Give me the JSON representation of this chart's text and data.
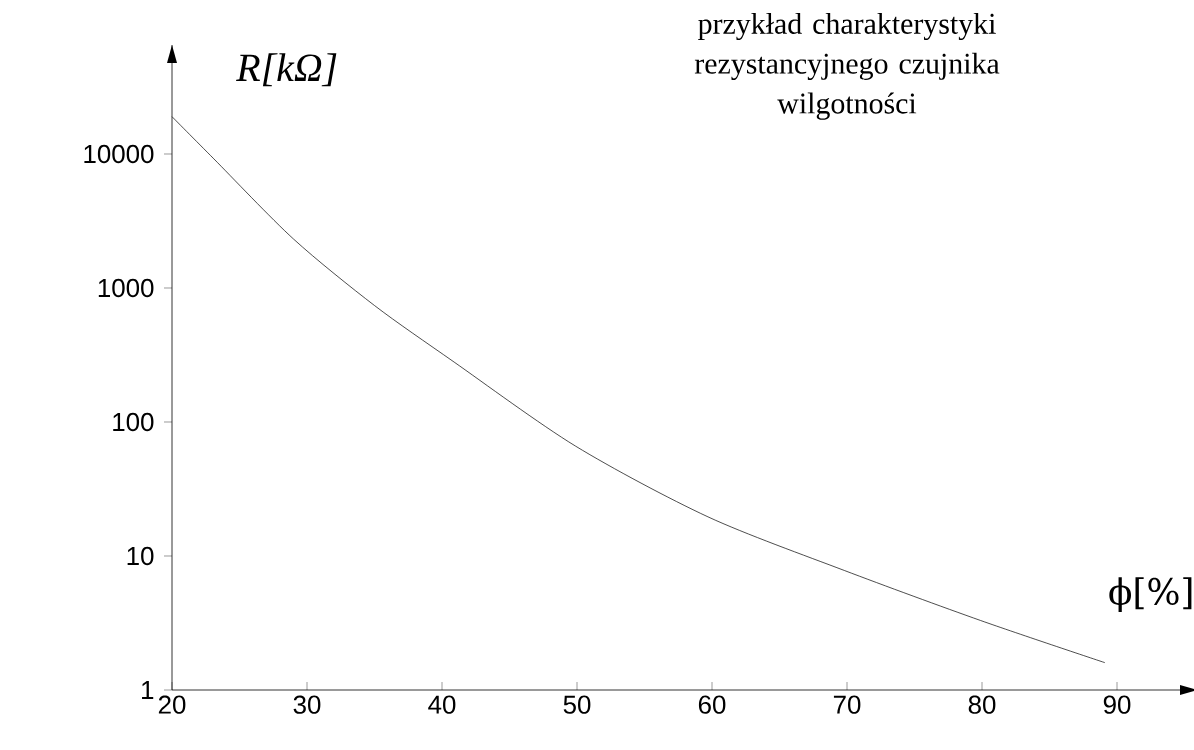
{
  "chart_data": {
    "type": "line",
    "title": "przykład charakterystyki\nrezystancyjnego czujnika\nwilgotności",
    "xlabel": "ϕ[%]",
    "ylabel": "R[kΩ]",
    "log": "y",
    "xlim": [
      20,
      96
    ],
    "ylim": [
      1,
      65000
    ],
    "xticks": [
      20,
      30,
      40,
      50,
      60,
      70,
      80,
      90
    ],
    "yticks": [
      1,
      10,
      100,
      1000,
      10000
    ],
    "grid": false,
    "marker": "none",
    "line_style": "solid",
    "series": [
      {
        "color": "#000000",
        "x": [
          20,
          23.1,
          29,
          35,
          40.9,
          49.9,
          59.7,
          69.8,
          79.9,
          89.1
        ],
        "values": [
          19000,
          9200,
          2320,
          740,
          280,
          66,
          19.6,
          7.8,
          3.3,
          1.6
        ]
      }
    ]
  }
}
